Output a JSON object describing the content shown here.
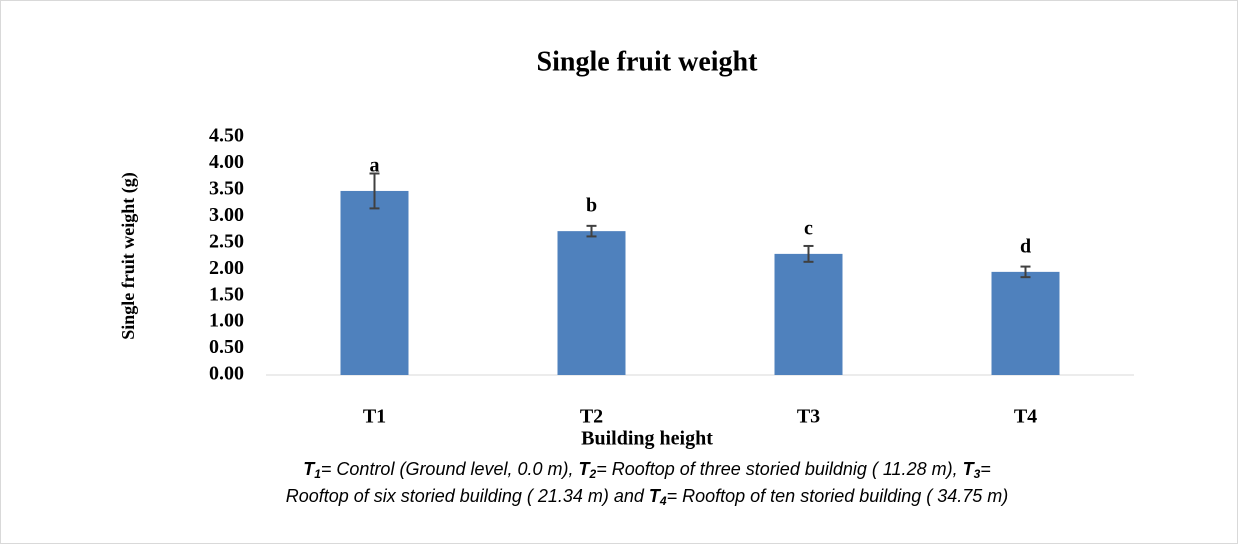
{
  "chart_data": {
    "type": "bar",
    "title": "Single fruit weight",
    "x_label": "Building height",
    "y_label": "Single fruit weight (g)",
    "categories": [
      "T1",
      "T2",
      "T3",
      "T4"
    ],
    "values": [
      3.48,
      2.72,
      2.29,
      1.95
    ],
    "errors": [
      0.33,
      0.1,
      0.15,
      0.1
    ],
    "annotations": [
      "a",
      "b",
      "c",
      "d"
    ],
    "color": "#4f81bd",
    "ylim": [
      0,
      4.5
    ],
    "yticks": [
      {
        "value": 0,
        "label": "0.00"
      },
      {
        "value": 0.5,
        "label": "0.50"
      },
      {
        "value": 1,
        "label": "1.00"
      },
      {
        "value": 1.5,
        "label": "1.50"
      },
      {
        "value": 2,
        "label": "2.00"
      },
      {
        "value": 2.5,
        "label": "2.50"
      },
      {
        "value": 3,
        "label": "3.00"
      },
      {
        "value": 3.5,
        "label": "3.50"
      },
      {
        "value": 4,
        "label": "4.00"
      },
      {
        "value": 4.5,
        "label": "4.50"
      }
    ],
    "grid": false,
    "footnote": [
      [
        {
          "symbol": "T",
          "sub": "1",
          "text": "= Control (Ground level, 0.0 m), "
        },
        {
          "symbol": "T",
          "sub": "2",
          "text": "= Rooftop of three storied buildnig ( 11.28 m), "
        },
        {
          "symbol": "T",
          "sub": "3",
          "text": "="
        }
      ],
      [
        {
          "symbol": "",
          "sub": "",
          "text": "Rooftop of six storied building ( 21.34 m) and "
        },
        {
          "symbol": "T",
          "sub": "4",
          "text": "= Rooftop of ten storied building ( 34.75 m)"
        }
      ]
    ]
  }
}
